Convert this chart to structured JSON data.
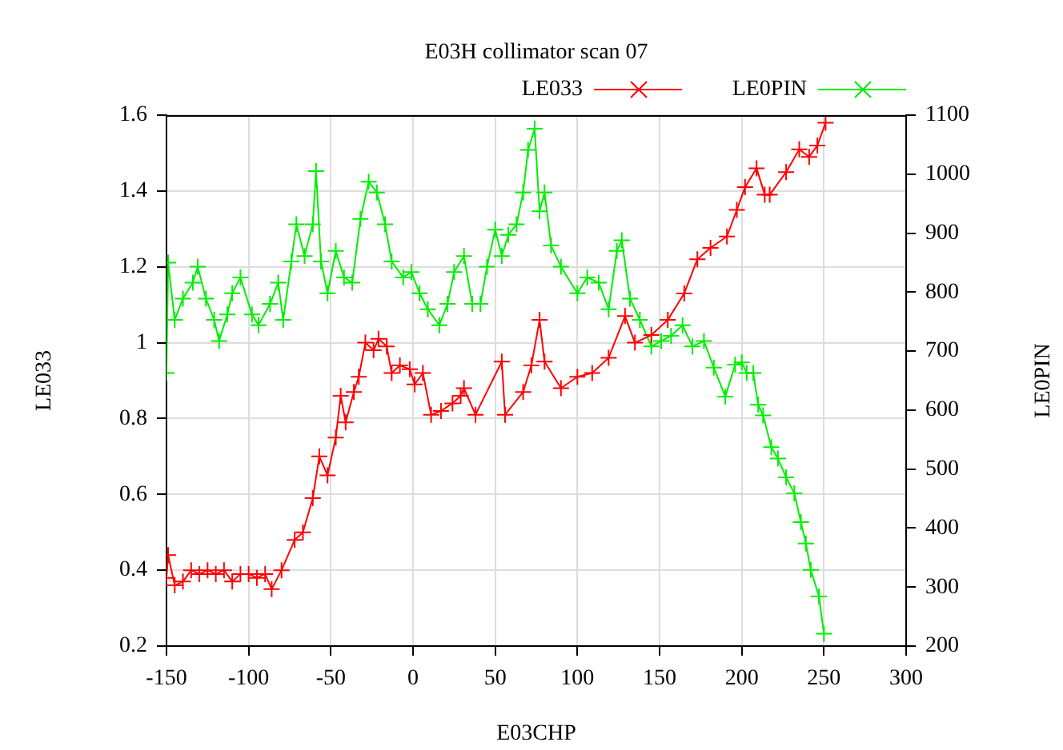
{
  "chart_data": {
    "type": "line",
    "title": "E03H collimator scan 07",
    "xlabel": "E03CHP",
    "ylabel": "LE033",
    "y2label": "LE0PIN",
    "xlim": [
      -150,
      300
    ],
    "xticks": [
      -150,
      -100,
      -50,
      0,
      50,
      100,
      150,
      200,
      250,
      300
    ],
    "ylim": [
      0.2,
      1.6
    ],
    "yticks": [
      0.2,
      0.4,
      0.6,
      0.8,
      1,
      1.2,
      1.4,
      1.6
    ],
    "y2lim": [
      200,
      1100
    ],
    "y2ticks": [
      200,
      300,
      400,
      500,
      600,
      700,
      800,
      900,
      1000,
      1100
    ],
    "grid": true,
    "legend": "top right",
    "marker": "cross",
    "line_style": "solid",
    "series": [
      {
        "name": "LE033",
        "color": "#ff0000",
        "x": [
          -150,
          -149,
          -145,
          -140,
          -135,
          -130,
          -125,
          -120,
          -115,
          -110,
          -105,
          -100,
          -95,
          -90,
          -86,
          -80,
          -72,
          -67,
          -61,
          -57,
          -52,
          -47,
          -44,
          -41,
          -36,
          -33,
          -29,
          -24,
          -21,
          -16,
          -13,
          -8,
          -2,
          1,
          6,
          11,
          17,
          24,
          29,
          31,
          38,
          54,
          56,
          67,
          72,
          77,
          80,
          90,
          100,
          109,
          119,
          129,
          135,
          145,
          155,
          165,
          173,
          181,
          191,
          197,
          202,
          209,
          214,
          217,
          227,
          235,
          241,
          246,
          251
        ],
        "values": [
          0.38,
          0.44,
          0.36,
          0.37,
          0.4,
          0.39,
          0.4,
          0.39,
          0.4,
          0.37,
          0.39,
          0.39,
          0.38,
          0.39,
          0.35,
          0.4,
          0.48,
          0.5,
          0.59,
          0.7,
          0.65,
          0.75,
          0.86,
          0.79,
          0.87,
          0.91,
          1.0,
          0.98,
          1.01,
          0.99,
          0.92,
          0.94,
          0.93,
          0.89,
          0.92,
          0.81,
          0.82,
          0.84,
          0.86,
          0.88,
          0.81,
          0.95,
          0.81,
          0.87,
          0.94,
          1.06,
          0.95,
          0.88,
          0.91,
          0.92,
          0.96,
          1.07,
          1.0,
          1.02,
          1.06,
          1.13,
          1.22,
          1.25,
          1.28,
          1.35,
          1.41,
          1.46,
          1.39,
          1.39,
          1.45,
          1.51,
          1.49,
          1.52,
          1.58
        ]
      },
      {
        "name": "LE0PIN",
        "color": "#00ee00",
        "axis": "y2",
        "x": [
          -150,
          -149,
          -145,
          -140,
          -134,
          -131,
          -126,
          -121,
          -118,
          -113,
          -110,
          -105,
          -98,
          -94,
          -87,
          -82,
          -79,
          -74,
          -71,
          -66,
          -61,
          -59,
          -56,
          -52,
          -47,
          -42,
          -37,
          -32,
          -27,
          -22,
          -17,
          -13,
          -6,
          -1,
          4,
          9,
          16,
          21,
          25,
          31,
          36,
          41,
          45,
          50,
          54,
          58,
          63,
          67,
          70,
          74,
          77,
          80,
          84,
          90,
          100,
          106,
          113,
          119,
          124,
          127,
          132,
          138,
          145,
          151,
          157,
          164,
          170,
          177,
          183,
          190,
          196,
          200,
          203,
          207,
          210,
          213,
          218,
          222,
          227,
          232,
          236,
          239,
          242,
          247,
          250
        ],
        "values": [
          663,
          850,
          753,
          789,
          816,
          843,
          789,
          753,
          717,
          762,
          798,
          825,
          762,
          744,
          780,
          816,
          753,
          852,
          915,
          861,
          915,
          1005,
          852,
          798,
          870,
          825,
          816,
          924,
          987,
          969,
          915,
          852,
          825,
          834,
          798,
          771,
          744,
          780,
          834,
          861,
          780,
          780,
          843,
          906,
          861,
          897,
          915,
          969,
          1041,
          1077,
          937,
          969,
          879,
          843,
          798,
          825,
          816,
          771,
          870,
          888,
          789,
          753,
          708,
          717,
          726,
          744,
          708,
          717,
          672,
          623,
          677,
          681,
          663,
          663,
          609,
          591,
          537,
          518,
          486,
          459,
          410,
          374,
          329,
          284,
          221
        ]
      }
    ]
  }
}
